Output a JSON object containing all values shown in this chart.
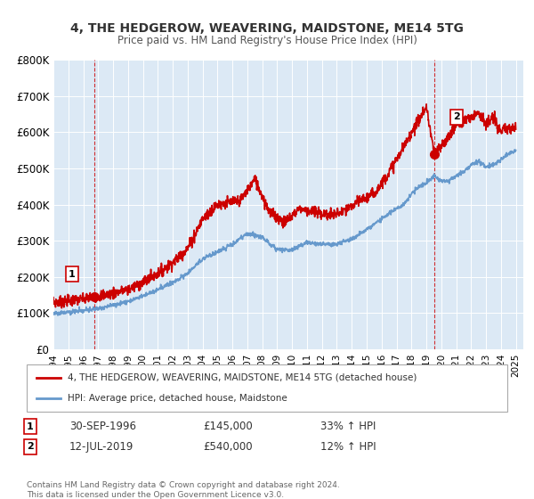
{
  "title": "4, THE HEDGEROW, WEAVERING, MAIDSTONE, ME14 5TG",
  "subtitle": "Price paid vs. HM Land Registry's House Price Index (HPI)",
  "red_label": "4, THE HEDGEROW, WEAVERING, MAIDSTONE, ME14 5TG (detached house)",
  "blue_label": "HPI: Average price, detached house, Maidstone",
  "annotation1_date": "30-SEP-1996",
  "annotation1_value": "£145,000",
  "annotation1_hpi": "33% ↑ HPI",
  "annotation2_date": "12-JUL-2019",
  "annotation2_value": "£540,000",
  "annotation2_hpi": "12% ↑ HPI",
  "footer": "Contains HM Land Registry data © Crown copyright and database right 2024.\nThis data is licensed under the Open Government Licence v3.0.",
  "point1_x": 1996.75,
  "point1_y": 145000,
  "point2_x": 2019.53,
  "point2_y": 540000,
  "red_color": "#cc0000",
  "blue_color": "#6699cc",
  "vline_color": "#cc0000",
  "bg_color": "#dce9f5",
  "plot_bg": "#dce9f5",
  "ylim": [
    0,
    800000
  ],
  "xlim_start": 1994.0,
  "xlim_end": 2025.5,
  "yticks": [
    0,
    100000,
    200000,
    300000,
    400000,
    500000,
    600000,
    700000,
    800000
  ],
  "ytick_labels": [
    "£0",
    "£100K",
    "£200K",
    "£300K",
    "£400K",
    "£500K",
    "£600K",
    "£700K",
    "£800K"
  ],
  "xticks": [
    1994,
    1995,
    1996,
    1997,
    1998,
    1999,
    2000,
    2001,
    2002,
    2003,
    2004,
    2005,
    2006,
    2007,
    2008,
    2009,
    2010,
    2011,
    2012,
    2013,
    2014,
    2015,
    2016,
    2017,
    2018,
    2019,
    2020,
    2021,
    2022,
    2023,
    2024,
    2025
  ]
}
